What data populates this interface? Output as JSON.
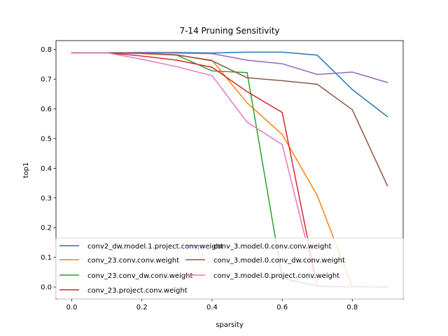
{
  "chart_data": {
    "type": "line",
    "title": "7-14 Pruning Sensitivity",
    "xlabel": "sparsity",
    "ylabel": "top1",
    "xlim": [
      -0.045,
      0.945
    ],
    "ylim": [
      -0.04,
      0.83
    ],
    "xticks": [
      0.0,
      0.2,
      0.4,
      0.6,
      0.8
    ],
    "xtick_labels": [
      "0.0",
      "0.2",
      "0.4",
      "0.6",
      "0.8"
    ],
    "yticks": [
      0.0,
      0.1,
      0.2,
      0.3,
      0.4,
      0.5,
      0.6,
      0.7,
      0.8
    ],
    "ytick_labels": [
      "0.0",
      "0.1",
      "0.2",
      "0.3",
      "0.4",
      "0.5",
      "0.6",
      "0.7",
      "0.8"
    ],
    "grid": false,
    "legend": "lower-center, 2 columns",
    "x": [
      0.0,
      0.1,
      0.2,
      0.3,
      0.4,
      0.5,
      0.6,
      0.7,
      0.8,
      0.9
    ],
    "series": [
      {
        "name": "conv2_dw.model.1.project.conv.weight",
        "color": "#1f77b4",
        "values": [
          0.789,
          0.789,
          0.79,
          0.79,
          0.788,
          0.791,
          0.791,
          0.781,
          0.665,
          0.574
        ]
      },
      {
        "name": "conv_23.conv.conv.weight",
        "color": "#ff7f0e",
        "values": [
          0.789,
          0.789,
          0.786,
          0.781,
          0.764,
          0.62,
          0.514,
          0.308,
          0.001,
          0.0
        ]
      },
      {
        "name": "conv_23.conv_dw.conv.weight",
        "color": "#2ca02c",
        "values": [
          0.789,
          0.789,
          0.788,
          0.781,
          0.728,
          0.722,
          0.03,
          0.003,
          0.001,
          0.0
        ]
      },
      {
        "name": "conv_23.project.conv.weight",
        "color": "#d62728",
        "values": [
          0.789,
          0.789,
          0.778,
          0.764,
          0.74,
          0.658,
          0.588,
          0.002,
          0.001,
          0.0
        ]
      },
      {
        "name": "conv_3.model.0.conv.conv.weight",
        "color": "#9467bd",
        "values": [
          0.789,
          0.789,
          0.789,
          0.788,
          0.786,
          0.764,
          0.752,
          0.716,
          0.724,
          0.689
        ]
      },
      {
        "name": "conv_3.model.0.conv_dw.conv.weight",
        "color": "#8c564b",
        "values": [
          0.789,
          0.789,
          0.787,
          0.782,
          0.762,
          0.705,
          0.695,
          0.683,
          0.597,
          0.341
        ]
      },
      {
        "name": "conv_3.model.0.project.conv.weight",
        "color": "#e377c2",
        "values": [
          0.789,
          0.789,
          0.767,
          0.742,
          0.712,
          0.555,
          0.48,
          0.002,
          0.001,
          0.0
        ]
      }
    ]
  }
}
